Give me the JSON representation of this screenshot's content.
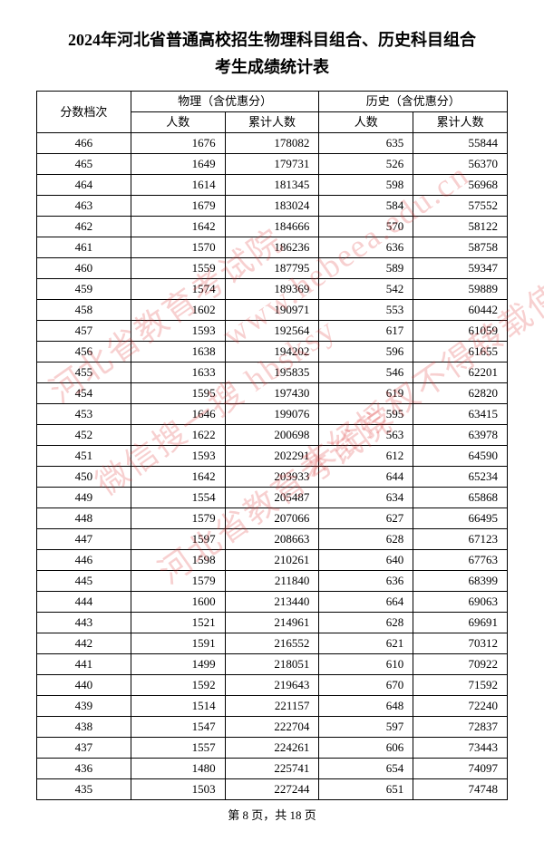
{
  "title_line1": "2024年河北省普通高校招生物理科目组合、历史科目组合",
  "title_line2": "考生成绩统计表",
  "footer": "第 8 页，共 18 页",
  "watermarks": {
    "w1": "河北省教育考试院",
    "w2": "www.hebeea.edu.cn",
    "w3": "微信搜一搜 hbsksy",
    "w4": "未经授权不得转载使用",
    "w5": "河北省教育考试院"
  },
  "table": {
    "headers": {
      "score": "分数档次",
      "physics": "物理（含优惠分）",
      "history": "历史（含优惠分）",
      "count": "人数",
      "cumulative": "累计人数"
    },
    "col_widths": [
      "20%",
      "20%",
      "20%",
      "20%",
      "20%"
    ],
    "rows": [
      {
        "score": "466",
        "p_count": "1676",
        "p_cum": "178082",
        "h_count": "635",
        "h_cum": "55844"
      },
      {
        "score": "465",
        "p_count": "1649",
        "p_cum": "179731",
        "h_count": "526",
        "h_cum": "56370"
      },
      {
        "score": "464",
        "p_count": "1614",
        "p_cum": "181345",
        "h_count": "598",
        "h_cum": "56968"
      },
      {
        "score": "463",
        "p_count": "1679",
        "p_cum": "183024",
        "h_count": "584",
        "h_cum": "57552"
      },
      {
        "score": "462",
        "p_count": "1642",
        "p_cum": "184666",
        "h_count": "570",
        "h_cum": "58122"
      },
      {
        "score": "461",
        "p_count": "1570",
        "p_cum": "186236",
        "h_count": "636",
        "h_cum": "58758"
      },
      {
        "score": "460",
        "p_count": "1559",
        "p_cum": "187795",
        "h_count": "589",
        "h_cum": "59347"
      },
      {
        "score": "459",
        "p_count": "1574",
        "p_cum": "189369",
        "h_count": "542",
        "h_cum": "59889"
      },
      {
        "score": "458",
        "p_count": "1602",
        "p_cum": "190971",
        "h_count": "553",
        "h_cum": "60442"
      },
      {
        "score": "457",
        "p_count": "1593",
        "p_cum": "192564",
        "h_count": "617",
        "h_cum": "61059"
      },
      {
        "score": "456",
        "p_count": "1638",
        "p_cum": "194202",
        "h_count": "596",
        "h_cum": "61655"
      },
      {
        "score": "455",
        "p_count": "1633",
        "p_cum": "195835",
        "h_count": "546",
        "h_cum": "62201"
      },
      {
        "score": "454",
        "p_count": "1595",
        "p_cum": "197430",
        "h_count": "619",
        "h_cum": "62820"
      },
      {
        "score": "453",
        "p_count": "1646",
        "p_cum": "199076",
        "h_count": "595",
        "h_cum": "63415"
      },
      {
        "score": "452",
        "p_count": "1622",
        "p_cum": "200698",
        "h_count": "563",
        "h_cum": "63978"
      },
      {
        "score": "451",
        "p_count": "1593",
        "p_cum": "202291",
        "h_count": "612",
        "h_cum": "64590"
      },
      {
        "score": "450",
        "p_count": "1642",
        "p_cum": "203933",
        "h_count": "644",
        "h_cum": "65234"
      },
      {
        "score": "449",
        "p_count": "1554",
        "p_cum": "205487",
        "h_count": "634",
        "h_cum": "65868"
      },
      {
        "score": "448",
        "p_count": "1579",
        "p_cum": "207066",
        "h_count": "627",
        "h_cum": "66495"
      },
      {
        "score": "447",
        "p_count": "1597",
        "p_cum": "208663",
        "h_count": "628",
        "h_cum": "67123"
      },
      {
        "score": "446",
        "p_count": "1598",
        "p_cum": "210261",
        "h_count": "640",
        "h_cum": "67763"
      },
      {
        "score": "445",
        "p_count": "1579",
        "p_cum": "211840",
        "h_count": "636",
        "h_cum": "68399"
      },
      {
        "score": "444",
        "p_count": "1600",
        "p_cum": "213440",
        "h_count": "664",
        "h_cum": "69063"
      },
      {
        "score": "443",
        "p_count": "1521",
        "p_cum": "214961",
        "h_count": "628",
        "h_cum": "69691"
      },
      {
        "score": "442",
        "p_count": "1591",
        "p_cum": "216552",
        "h_count": "621",
        "h_cum": "70312"
      },
      {
        "score": "441",
        "p_count": "1499",
        "p_cum": "218051",
        "h_count": "610",
        "h_cum": "70922"
      },
      {
        "score": "440",
        "p_count": "1592",
        "p_cum": "219643",
        "h_count": "670",
        "h_cum": "71592"
      },
      {
        "score": "439",
        "p_count": "1514",
        "p_cum": "221157",
        "h_count": "648",
        "h_cum": "72240"
      },
      {
        "score": "438",
        "p_count": "1547",
        "p_cum": "222704",
        "h_count": "597",
        "h_cum": "72837"
      },
      {
        "score": "437",
        "p_count": "1557",
        "p_cum": "224261",
        "h_count": "606",
        "h_cum": "73443"
      },
      {
        "score": "436",
        "p_count": "1480",
        "p_cum": "225741",
        "h_count": "654",
        "h_cum": "74097"
      },
      {
        "score": "435",
        "p_count": "1503",
        "p_cum": "227244",
        "h_count": "651",
        "h_cum": "74748"
      }
    ]
  }
}
